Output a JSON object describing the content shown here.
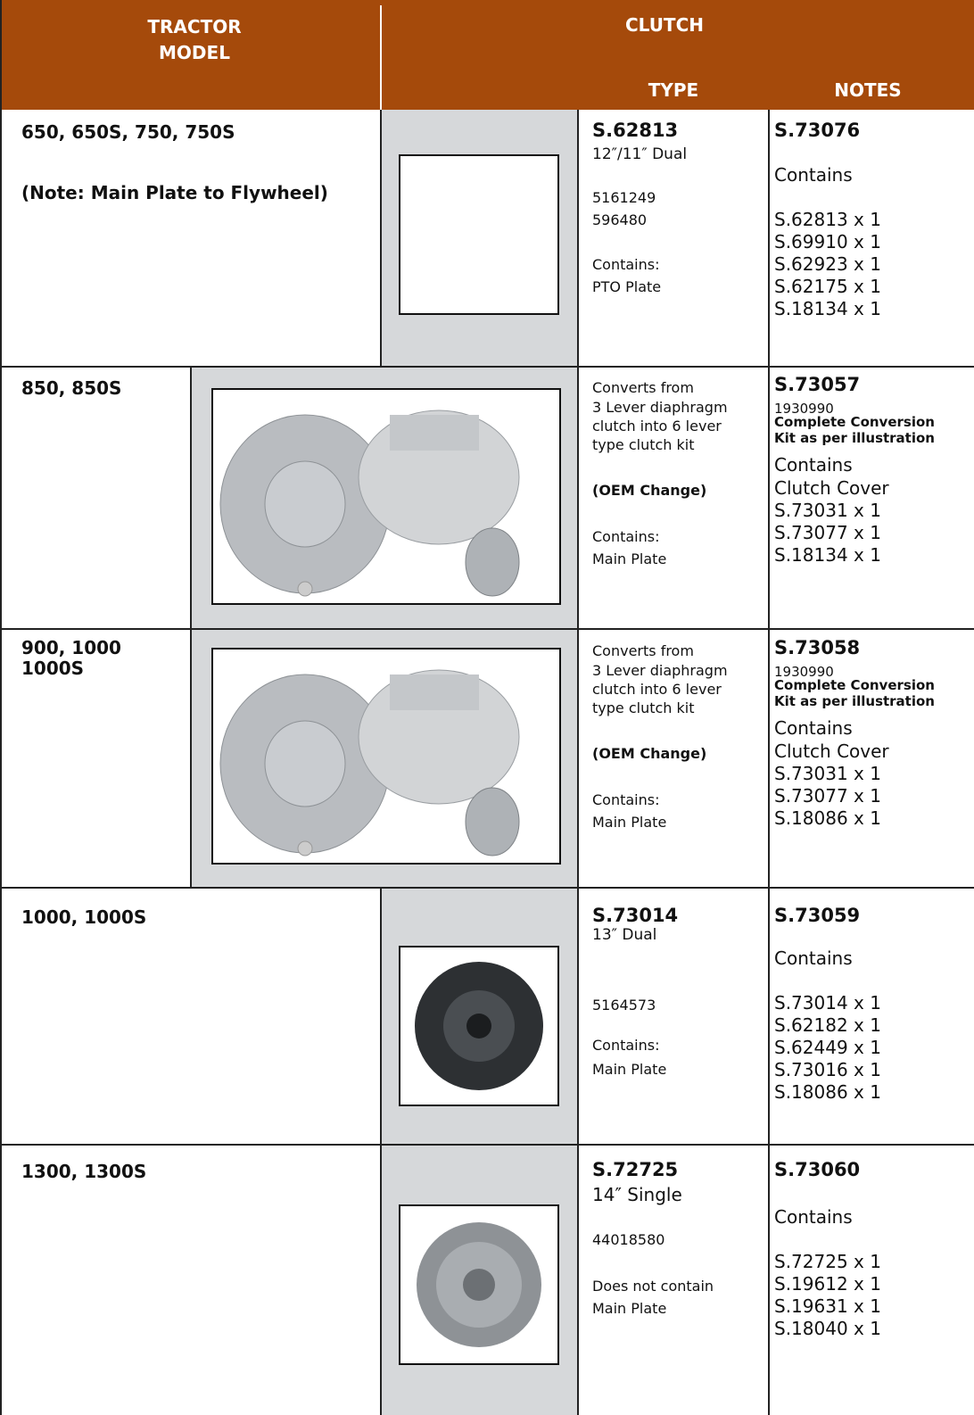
{
  "header": {
    "tractor_model": [
      "TRACTOR",
      "MODEL"
    ],
    "clutch": "CLUTCH",
    "type": "TYPE",
    "notes": "NOTES"
  },
  "rows": [
    {
      "model": [
        "650, 650S, 750, 750S",
        "(Note: Main Plate to Flywheel)"
      ],
      "type": [
        "S.62813",
        "12″/11″ Dual",
        "5161249",
        "596480",
        "Contains:",
        "PTO Plate"
      ],
      "notes": [
        "S.73076",
        "Contains",
        "S.62813 x 1",
        "S.69910 x 1",
        "S.62923 x 1",
        "S.62175 x 1",
        "S.18134 x 1"
      ]
    },
    {
      "model": [
        "850, 850S"
      ],
      "type": [
        "Converts from",
        "3 Lever diaphragm",
        "clutch into 6 lever",
        "type clutch kit",
        "(OEM Change)",
        "Contains:",
        "Main Plate"
      ],
      "notes": [
        "S.73057",
        "1930990",
        "Complete Conversion",
        "Kit as per illustration",
        "Contains",
        "Clutch Cover",
        "S.73031 x 1",
        "S.73077 x 1",
        "S.18134 x 1"
      ]
    },
    {
      "model": [
        "900, 1000",
        "1000S"
      ],
      "type": [
        "Converts from",
        "3 Lever diaphragm",
        "clutch into 6 lever",
        "type clutch kit",
        "(OEM Change)",
        "Contains:",
        "Main Plate"
      ],
      "notes": [
        "S.73058",
        "1930990",
        "Complete Conversion",
        "Kit as per illustration",
        "Contains",
        "Clutch Cover",
        "S.73031 x 1",
        "S.73077 x 1",
        "S.18086 x 1"
      ]
    },
    {
      "model": [
        "1000, 1000S"
      ],
      "type": [
        "S.73014",
        "13″ Dual",
        "5164573",
        "Contains:",
        "Main Plate"
      ],
      "notes": [
        "S.73059",
        "Contains",
        "S.73014 x 1",
        "S.62182 x 1",
        "S.62449 x 1",
        "S.73016 x 1",
        "S.18086 x 1"
      ]
    },
    {
      "model": [
        "1300, 1300S"
      ],
      "type": [
        "S.72725",
        "14″ Single",
        "44018580",
        "Does not contain",
        "Main Plate"
      ],
      "notes": [
        "S.73060",
        "Contains",
        "S.72725 x 1",
        "S.19612 x 1",
        "S.19631 x 1",
        "S.18040 x 1"
      ]
    }
  ]
}
